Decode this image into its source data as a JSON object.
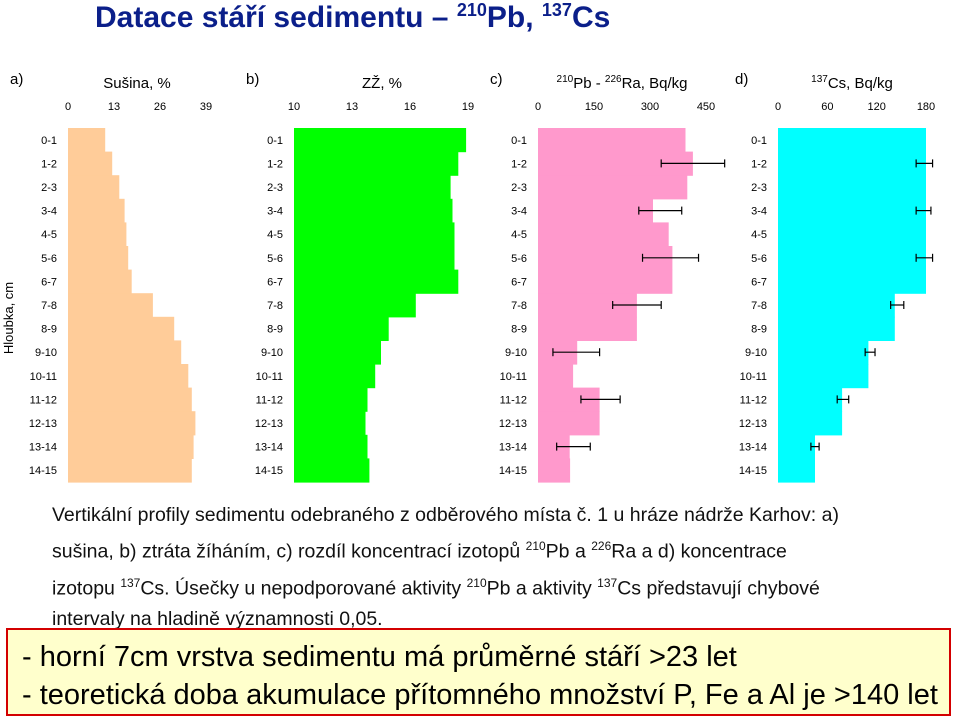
{
  "title": {
    "text": "Datace stáří sedimentu – ",
    "iso1_mass": "210",
    "iso1_el": "Pb, ",
    "iso2_mass": "137",
    "iso2_el": "Cs"
  },
  "y_axis_label": "Hloubka, cm",
  "depth_labels": [
    "0-1",
    "1-2",
    "2-3",
    "3-4",
    "4-5",
    "5-6",
    "6-7",
    "7-8",
    "8-9",
    "9-10",
    "10-11",
    "11-12",
    "12-13",
    "13-14",
    "14-15"
  ],
  "chart_data": [
    {
      "type": "bar",
      "orientation": "horizontal",
      "panel_letter": "a)",
      "title_parts": [
        "Sušina, %"
      ],
      "ticks": [
        "0",
        "13",
        "26",
        "39"
      ],
      "xlim": [
        0,
        39
      ],
      "color": "#ffcc99",
      "categories": [
        "0-1",
        "1-2",
        "2-3",
        "3-4",
        "4-5",
        "5-6",
        "6-7",
        "7-8",
        "8-9",
        "9-10",
        "10-11",
        "11-12",
        "12-13",
        "13-14",
        "14-15"
      ],
      "values": [
        10.5,
        12.5,
        14.5,
        16,
        16.5,
        17,
        18,
        24,
        30,
        32,
        34,
        35,
        36,
        35.5,
        35
      ]
    },
    {
      "type": "bar",
      "orientation": "horizontal",
      "panel_letter": "b)",
      "title_parts": [
        "ZŽ, %"
      ],
      "ticks": [
        "10",
        "13",
        "16",
        "19"
      ],
      "xlim": [
        10,
        19
      ],
      "color": "#00ff00",
      "categories": [
        "0-1",
        "1-2",
        "2-3",
        "3-4",
        "4-5",
        "5-6",
        "6-7",
        "7-8",
        "8-9",
        "9-10",
        "10-11",
        "11-12",
        "12-13",
        "13-14",
        "14-15"
      ],
      "values": [
        18.9,
        18.5,
        18.1,
        18.2,
        18.3,
        18.3,
        18.5,
        16.3,
        14.9,
        14.5,
        14.2,
        13.8,
        13.7,
        13.8,
        13.9
      ]
    },
    {
      "type": "bar",
      "orientation": "horizontal",
      "panel_letter": "c)",
      "title_parts": [
        "210",
        "Pb - ",
        "226",
        "Ra, Bq/kg"
      ],
      "ticks": [
        "0",
        "150",
        "300",
        "450"
      ],
      "xlim": [
        0,
        450
      ],
      "color": "#ff99cc",
      "categories": [
        "0-1",
        "1-2",
        "2-3",
        "3-4",
        "4-5",
        "5-6",
        "6-7",
        "7-8",
        "8-9",
        "9-10",
        "10-11",
        "11-12",
        "12-13",
        "13-14",
        "14-15"
      ],
      "values": [
        395,
        415,
        400,
        308,
        350,
        360,
        360,
        265,
        265,
        105,
        94,
        165,
        165,
        85,
        86
      ],
      "error_bars": [
        null,
        [
          330,
          500
        ],
        null,
        [
          270,
          385
        ],
        null,
        [
          280,
          430
        ],
        null,
        [
          200,
          330
        ],
        null,
        [
          40,
          165
        ],
        null,
        [
          115,
          220
        ],
        null,
        [
          50,
          140
        ],
        null
      ]
    },
    {
      "type": "bar",
      "orientation": "horizontal",
      "panel_letter": "d)",
      "title_parts": [
        "137",
        "Cs, Bq/kg"
      ],
      "ticks": [
        "0",
        "60",
        "120",
        "180"
      ],
      "xlim": [
        0,
        180
      ],
      "color": "#00ffff",
      "categories": [
        "0-1",
        "1-2",
        "2-3",
        "3-4",
        "4-5",
        "5-6",
        "6-7",
        "7-8",
        "8-9",
        "9-10",
        "10-11",
        "11-12",
        "12-13",
        "13-14",
        "14-15"
      ],
      "values": [
        180,
        180,
        180,
        180,
        180,
        180,
        180,
        142,
        142,
        110,
        110,
        78,
        78,
        45,
        45
      ],
      "error_bars": [
        null,
        [
          168,
          188
        ],
        null,
        [
          168,
          186
        ],
        null,
        [
          168,
          188
        ],
        null,
        [
          137,
          153
        ],
        null,
        [
          106,
          118
        ],
        null,
        [
          72,
          86
        ],
        null,
        [
          40,
          50
        ],
        null
      ]
    }
  ],
  "caption": {
    "l1": "Vertikální profily sedimentu odebraného z odběrového místa č. 1 u hráze nádrže Karhov: a)",
    "l2a": "sušina, b) ztráta žíháním, c) rozdíl koncentrací izotopů ",
    "l2_m1": "210",
    "l2b": "Pb a ",
    "l2_m2": "226",
    "l2c": "Ra a d) koncentrace",
    "l3a": "izotopu ",
    "l3_m1": "137",
    "l3b": "Cs. Úsečky u nepodporované aktivity ",
    "l3_m2": "210",
    "l3c": "Pb a aktivity ",
    "l3_m3": "137",
    "l3d": "Cs představují chybové",
    "l4": "intervaly na hladině významnosti 0,05."
  },
  "conclusions": [
    "- horní 7cm vrstva sedimentu má průměrné stáří >23 let",
    "- teoretická doba akumulace přítomného množství P, Fe a Al je >140 let"
  ]
}
